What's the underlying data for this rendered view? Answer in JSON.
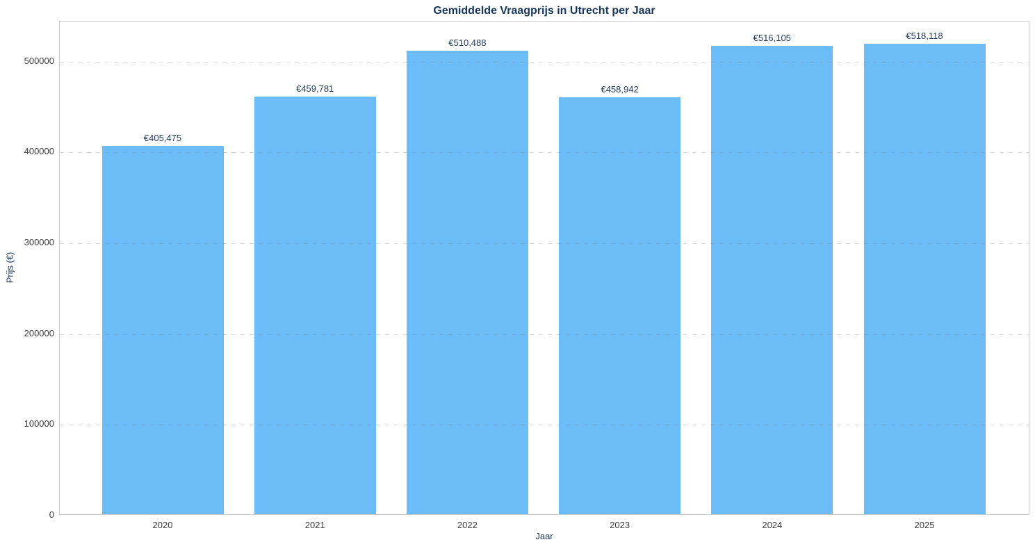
{
  "chart_data": {
    "type": "bar",
    "title": "Gemiddelde Vraagprijs in Utrecht per Jaar",
    "xlabel": "Jaar",
    "ylabel": "Prijs (€)",
    "categories": [
      "2020",
      "2021",
      "2022",
      "2023",
      "2024",
      "2025"
    ],
    "values": [
      405475,
      459781,
      510488,
      458942,
      516105,
      518118
    ],
    "data_labels": [
      "€405,475",
      "€459,781",
      "€510,488",
      "€458,942",
      "€516,105",
      "€518,118"
    ],
    "ylim": [
      0,
      544024
    ],
    "yticks": [
      0,
      100000,
      200000,
      300000,
      400000,
      500000
    ],
    "ytick_labels": [
      "0",
      "100000",
      "200000",
      "300000",
      "400000",
      "500000"
    ],
    "grid": "horizontal-dashed",
    "legend": "none",
    "colors": {
      "bar": "#6CBCF8",
      "title": "#17365d",
      "axis_label": "#17365d",
      "value_label": "#1f3a5f",
      "tick_label": "#3b3b3b",
      "grid": "#dcdcdc",
      "spine": "#c9c9c9",
      "background": "#ffffff"
    }
  }
}
